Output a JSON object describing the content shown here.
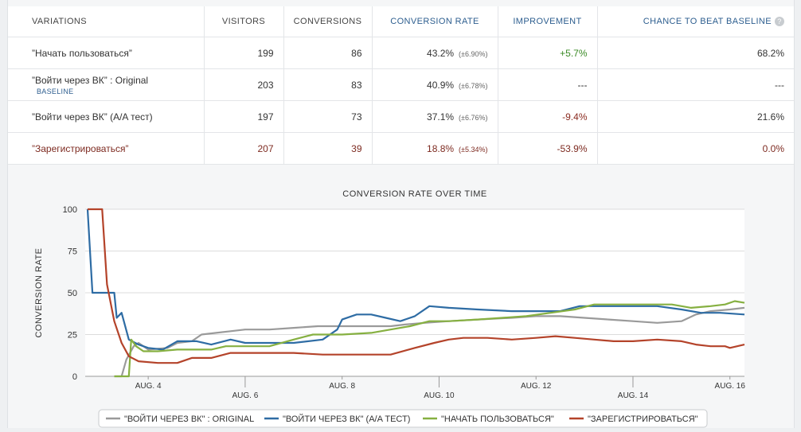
{
  "table": {
    "headers": {
      "variations": "VARIATIONS",
      "visitors": "VISITORS",
      "conversions": "CONVERSIONS",
      "conversion_rate": "CONVERSION RATE",
      "improvement": "IMPROVEMENT",
      "chance": "CHANCE TO BEAT BASELINE"
    },
    "rows": [
      {
        "name": "”Начать пользоваться”",
        "visitors": "199",
        "conversions": "86",
        "rate": "43.2%",
        "err": "(±6.90%)",
        "improvement": "+5.7%",
        "chance": "68.2%"
      },
      {
        "name": "”Войти через ВК” : Original",
        "badge": "BASELINE",
        "visitors": "203",
        "conversions": "83",
        "rate": "40.9%",
        "err": "(±6.78%)",
        "improvement": "---",
        "chance": "---"
      },
      {
        "name": "”Войти через ВК” (A/A тест)",
        "visitors": "197",
        "conversions": "73",
        "rate": "37.1%",
        "err": "(±6.76%)",
        "improvement": "-9.4%",
        "chance": "21.6%"
      },
      {
        "name": "”Зарегистрироваться”",
        "visitors": "207",
        "conversions": "39",
        "rate": "18.8%",
        "err": "(±5.34%)",
        "improvement": "-53.9%",
        "chance": "0.0%"
      }
    ],
    "help_icon": "question-icon"
  },
  "chart_data": {
    "type": "line",
    "title": "CONVERSION RATE OVER TIME",
    "ylabel": "CONVERSION RATE",
    "xlabel": "",
    "ylim": [
      0,
      100
    ],
    "yticks": [
      0,
      25,
      50,
      75,
      100
    ],
    "xlim": [
      2.7,
      16.3
    ],
    "xticks": [
      {
        "x": 4,
        "label": "AUG. 4",
        "row": 1
      },
      {
        "x": 6,
        "label": "AUG. 6",
        "row": 2
      },
      {
        "x": 8,
        "label": "AUG. 8",
        "row": 1
      },
      {
        "x": 10,
        "label": "AUG. 10",
        "row": 2
      },
      {
        "x": 12,
        "label": "AUG. 12",
        "row": 1
      },
      {
        "x": 14,
        "label": "AUG. 14",
        "row": 2
      },
      {
        "x": 16,
        "label": "AUG. 16",
        "row": 1
      }
    ],
    "grid": true,
    "legend_placement": "bottom",
    "series": [
      {
        "name": "\"ВОЙТИ ЧЕРЕЗ ВК\" : ORIGINAL",
        "color": "#9a9a9a",
        "points": [
          [
            3.3,
            0
          ],
          [
            3.45,
            0
          ],
          [
            3.55,
            10
          ],
          [
            3.7,
            18
          ],
          [
            3.8,
            20
          ],
          [
            4.0,
            16
          ],
          [
            4.4,
            17
          ],
          [
            4.6,
            20
          ],
          [
            4.9,
            21
          ],
          [
            5.1,
            25
          ],
          [
            5.4,
            26
          ],
          [
            5.7,
            27
          ],
          [
            6.0,
            28
          ],
          [
            6.5,
            28
          ],
          [
            7.0,
            29
          ],
          [
            7.5,
            30
          ],
          [
            8.0,
            30
          ],
          [
            8.6,
            30
          ],
          [
            9.0,
            30
          ],
          [
            9.3,
            31
          ],
          [
            9.7,
            32
          ],
          [
            10.2,
            33
          ],
          [
            10.8,
            34
          ],
          [
            11.5,
            35
          ],
          [
            12.0,
            36
          ],
          [
            12.5,
            36
          ],
          [
            13.0,
            35
          ],
          [
            13.5,
            34
          ],
          [
            14.0,
            33
          ],
          [
            14.5,
            32
          ],
          [
            15.0,
            33
          ],
          [
            15.3,
            37
          ],
          [
            15.6,
            39
          ],
          [
            16.0,
            40
          ],
          [
            16.3,
            41
          ]
        ]
      },
      {
        "name": "\"ВОЙТИ ЧЕРЕЗ ВК\" (A/A ТЕСТ)",
        "color": "#2e6ca4",
        "points": [
          [
            2.75,
            100
          ],
          [
            2.85,
            50
          ],
          [
            3.1,
            50
          ],
          [
            3.3,
            50
          ],
          [
            3.35,
            35
          ],
          [
            3.45,
            38
          ],
          [
            3.6,
            22
          ],
          [
            3.8,
            19
          ],
          [
            4.0,
            17
          ],
          [
            4.3,
            16
          ],
          [
            4.6,
            21
          ],
          [
            5.0,
            21
          ],
          [
            5.3,
            19
          ],
          [
            5.7,
            22
          ],
          [
            6.0,
            20
          ],
          [
            6.5,
            20
          ],
          [
            7.0,
            20
          ],
          [
            7.6,
            22
          ],
          [
            7.9,
            28
          ],
          [
            8.0,
            34
          ],
          [
            8.3,
            37
          ],
          [
            8.6,
            37
          ],
          [
            8.9,
            35
          ],
          [
            9.2,
            33
          ],
          [
            9.5,
            36
          ],
          [
            9.8,
            42
          ],
          [
            10.2,
            41
          ],
          [
            10.8,
            40
          ],
          [
            11.5,
            39
          ],
          [
            12.0,
            39
          ],
          [
            12.5,
            39
          ],
          [
            12.9,
            42
          ],
          [
            13.5,
            42
          ],
          [
            14.0,
            42
          ],
          [
            14.5,
            42
          ],
          [
            15.0,
            40
          ],
          [
            15.4,
            38
          ],
          [
            15.8,
            38
          ],
          [
            16.3,
            37
          ]
        ]
      },
      {
        "name": "\"НАЧАТЬ ПОЛЬЗОВАТЬСЯ\"",
        "color": "#86b041",
        "points": [
          [
            3.3,
            0
          ],
          [
            3.6,
            0
          ],
          [
            3.65,
            22
          ],
          [
            3.75,
            18
          ],
          [
            3.9,
            15
          ],
          [
            4.2,
            15
          ],
          [
            4.6,
            16
          ],
          [
            5.0,
            16
          ],
          [
            5.3,
            16
          ],
          [
            5.6,
            18
          ],
          [
            6.0,
            18
          ],
          [
            6.5,
            18
          ],
          [
            7.0,
            22
          ],
          [
            7.4,
            25
          ],
          [
            8.0,
            25
          ],
          [
            8.6,
            26
          ],
          [
            9.0,
            28
          ],
          [
            9.4,
            30
          ],
          [
            9.8,
            33
          ],
          [
            10.2,
            33
          ],
          [
            10.8,
            34
          ],
          [
            11.3,
            35
          ],
          [
            11.8,
            36
          ],
          [
            12.3,
            38
          ],
          [
            12.8,
            40
          ],
          [
            13.2,
            43
          ],
          [
            13.7,
            43
          ],
          [
            14.2,
            43
          ],
          [
            14.8,
            43
          ],
          [
            15.2,
            41
          ],
          [
            15.6,
            42
          ],
          [
            15.9,
            43
          ],
          [
            16.1,
            45
          ],
          [
            16.3,
            44
          ]
        ]
      },
      {
        "name": "\"ЗАРЕГИСТРИРОВАТЬСЯ\"",
        "color": "#b4432a",
        "points": [
          [
            2.75,
            100
          ],
          [
            3.05,
            100
          ],
          [
            3.15,
            55
          ],
          [
            3.3,
            33
          ],
          [
            3.45,
            20
          ],
          [
            3.6,
            12
          ],
          [
            3.8,
            9
          ],
          [
            4.2,
            8
          ],
          [
            4.6,
            8
          ],
          [
            4.9,
            11
          ],
          [
            5.3,
            11
          ],
          [
            5.7,
            14
          ],
          [
            6.0,
            14
          ],
          [
            6.5,
            14
          ],
          [
            7.0,
            14
          ],
          [
            7.6,
            13
          ],
          [
            8.0,
            13
          ],
          [
            8.5,
            13
          ],
          [
            9.0,
            13
          ],
          [
            9.5,
            17
          ],
          [
            9.9,
            20
          ],
          [
            10.2,
            22
          ],
          [
            10.5,
            23
          ],
          [
            11.0,
            23
          ],
          [
            11.5,
            22
          ],
          [
            12.0,
            23
          ],
          [
            12.4,
            24
          ],
          [
            12.8,
            23
          ],
          [
            13.2,
            22
          ],
          [
            13.6,
            21
          ],
          [
            14.0,
            21
          ],
          [
            14.5,
            22
          ],
          [
            15.0,
            21
          ],
          [
            15.3,
            19
          ],
          [
            15.6,
            18
          ],
          [
            15.9,
            18
          ],
          [
            16.0,
            17
          ],
          [
            16.3,
            19
          ]
        ]
      }
    ]
  }
}
